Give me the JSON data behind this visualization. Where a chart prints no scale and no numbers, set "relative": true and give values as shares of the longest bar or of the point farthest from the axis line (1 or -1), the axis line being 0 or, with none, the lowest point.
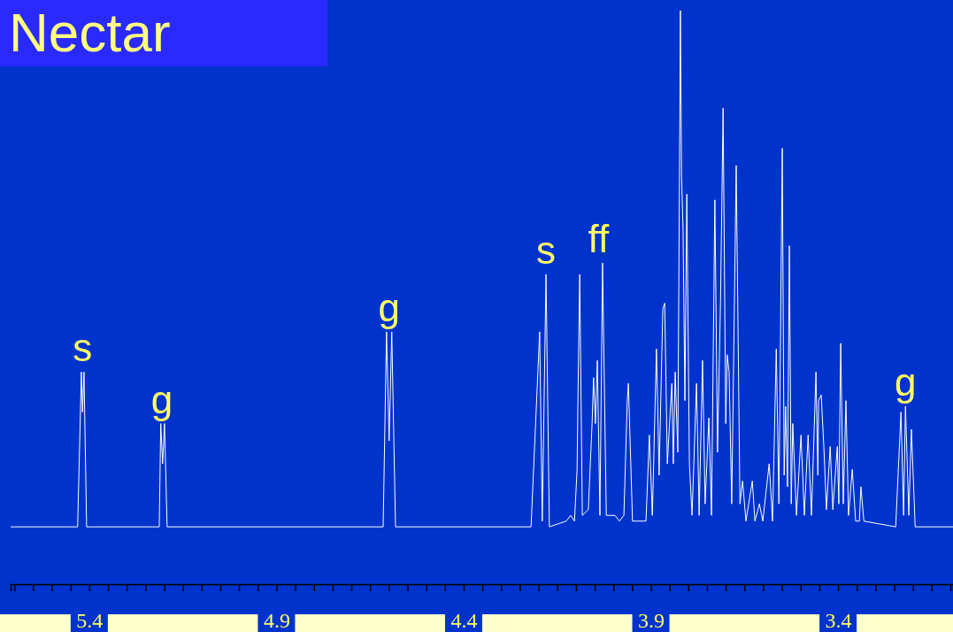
{
  "chart_data": {
    "type": "line",
    "title": "Nectar",
    "relative": true,
    "xlim": [
      5.61,
      3.093
    ],
    "xticks": [
      {
        "value": 5.6,
        "label": null
      },
      {
        "value": 5.55,
        "label": null
      },
      {
        "value": 5.5,
        "label": null
      },
      {
        "value": 5.45,
        "label": null
      },
      5.4,
      {
        "value": 5.35,
        "label": null
      },
      {
        "value": 5.3,
        "label": null
      },
      {
        "value": 5.25,
        "label": null
      },
      {
        "value": 5.2,
        "label": null
      },
      {
        "value": 5.15,
        "label": null
      },
      {
        "value": 5.1,
        "label": null
      },
      {
        "value": 5.05,
        "label": null
      },
      {
        "value": 5.0,
        "label": null
      },
      {
        "value": 4.95,
        "label": null
      },
      4.9,
      {
        "value": 4.85,
        "label": null
      },
      {
        "value": 4.8,
        "label": null
      },
      {
        "value": 4.75,
        "label": null
      },
      {
        "value": 4.7,
        "label": null
      },
      {
        "value": 4.65,
        "label": null
      },
      {
        "value": 4.6,
        "label": null
      },
      {
        "value": 4.55,
        "label": null
      },
      {
        "value": 4.5,
        "label": null
      },
      {
        "value": 4.45,
        "label": null
      },
      4.4,
      {
        "value": 4.35,
        "label": null
      },
      {
        "value": 4.3,
        "label": null
      },
      {
        "value": 4.25,
        "label": null
      },
      {
        "value": 4.2,
        "label": null
      },
      {
        "value": 4.15,
        "label": null
      },
      {
        "value": 4.1,
        "label": null
      },
      {
        "value": 4.05,
        "label": null
      },
      {
        "value": 4.0,
        "label": null
      },
      {
        "value": 3.95,
        "label": null
      },
      3.9,
      {
        "value": 3.85,
        "label": null
      },
      {
        "value": 3.8,
        "label": null
      },
      {
        "value": 3.75,
        "label": null
      },
      {
        "value": 3.7,
        "label": null
      },
      {
        "value": 3.65,
        "label": null
      },
      {
        "value": 3.6,
        "label": null
      },
      {
        "value": 3.55,
        "label": null
      },
      {
        "value": 3.5,
        "label": null
      },
      {
        "value": 3.45,
        "label": null
      },
      3.4,
      {
        "value": 3.35,
        "label": null
      },
      {
        "value": 3.3,
        "label": null
      },
      {
        "value": 3.25,
        "label": null
      },
      {
        "value": 3.2,
        "label": null
      },
      {
        "value": 3.15,
        "label": null
      },
      {
        "value": 3.1,
        "label": null
      }
    ],
    "annotations": [
      {
        "text": "s",
        "x": 5.418,
        "y": 0.37
      },
      {
        "text": "g",
        "x": 5.206,
        "y": 0.28
      },
      {
        "text": "g",
        "x": 4.599,
        "y": 0.44
      },
      {
        "text": "s",
        "x": 4.18,
        "y": 0.54
      },
      {
        "text": "ff",
        "x": 4.04,
        "y": 0.56
      },
      {
        "text": "g",
        "x": 3.22,
        "y": 0.31
      }
    ],
    "series": [
      {
        "color": "#ffffff",
        "x": [
          5.61,
          5.431,
          5.421,
          5.418,
          5.414,
          5.407,
          5.213,
          5.209,
          5.204,
          5.199,
          5.192,
          4.615,
          4.606,
          4.599,
          4.592,
          4.582,
          4.22,
          4.197,
          4.19,
          4.18,
          4.171,
          4.126,
          4.114,
          4.104,
          4.097,
          4.095,
          4.09,
          4.083,
          4.067,
          4.057,
          4.053,
          4.048,
          4.043,
          4.036,
          4.029,
          4.019,
          3.996,
          3.984,
          3.972,
          3.963,
          3.96,
          3.949,
          3.913,
          3.904,
          3.896,
          3.885,
          3.878,
          3.868,
          3.863,
          3.856,
          3.844,
          3.84,
          3.835,
          3.828,
          3.821,
          3.818,
          3.814,
          3.809,
          3.804,
          3.797,
          3.79,
          3.778,
          3.771,
          3.762,
          3.755,
          3.745,
          3.738,
          3.729,
          3.722,
          3.714,
          3.707,
          3.7,
          3.696,
          3.691,
          3.684,
          3.672,
          3.662,
          3.655,
          3.646,
          3.629,
          3.622,
          3.61,
          3.601,
          3.584,
          3.575,
          3.565,
          3.558,
          3.549,
          3.544,
          3.54,
          3.535,
          3.53,
          3.525,
          3.521,
          3.511,
          3.499,
          3.49,
          3.48,
          3.471,
          3.459,
          3.454,
          3.452,
          3.445,
          3.438,
          3.431,
          3.421,
          3.414,
          3.402,
          3.398,
          3.393,
          3.386,
          3.379,
          3.372,
          3.362,
          3.353,
          3.343,
          3.339,
          3.331,
          3.246,
          3.232,
          3.225,
          3.22,
          3.218,
          3.211,
          3.204,
          3.194,
          3.093
        ],
        "values": [
          0.1,
          0.1,
          0.37,
          0.3,
          0.37,
          0.1,
          0.1,
          0.28,
          0.21,
          0.28,
          0.1,
          0.1,
          0.44,
          0.25,
          0.44,
          0.1,
          0.1,
          0.44,
          0.11,
          0.54,
          0.1,
          0.11,
          0.12,
          0.11,
          0.2,
          0.31,
          0.54,
          0.12,
          0.13,
          0.28,
          0.36,
          0.28,
          0.39,
          0.12,
          0.56,
          0.12,
          0.12,
          0.11,
          0.12,
          0.32,
          0.35,
          0.11,
          0.11,
          0.26,
          0.12,
          0.41,
          0.19,
          0.48,
          0.49,
          0.21,
          0.35,
          0.21,
          0.37,
          0.23,
          1.0,
          0.71,
          0.62,
          0.32,
          0.68,
          0.21,
          0.12,
          0.35,
          0.12,
          0.39,
          0.14,
          0.29,
          0.12,
          0.67,
          0.23,
          0.49,
          0.83,
          0.28,
          0.4,
          0.37,
          0.14,
          0.73,
          0.14,
          0.18,
          0.11,
          0.18,
          0.11,
          0.14,
          0.11,
          0.21,
          0.11,
          0.41,
          0.14,
          0.76,
          0.19,
          0.31,
          0.17,
          0.59,
          0.14,
          0.28,
          0.12,
          0.26,
          0.12,
          0.26,
          0.12,
          0.37,
          0.19,
          0.32,
          0.33,
          0.24,
          0.13,
          0.24,
          0.13,
          0.24,
          0.14,
          0.42,
          0.14,
          0.32,
          0.12,
          0.2,
          0.11,
          0.11,
          0.17,
          0.11,
          0.1,
          0.3,
          0.12,
          0.31,
          0.27,
          0.12,
          0.27,
          0.1,
          0.1
        ]
      }
    ]
  }
}
